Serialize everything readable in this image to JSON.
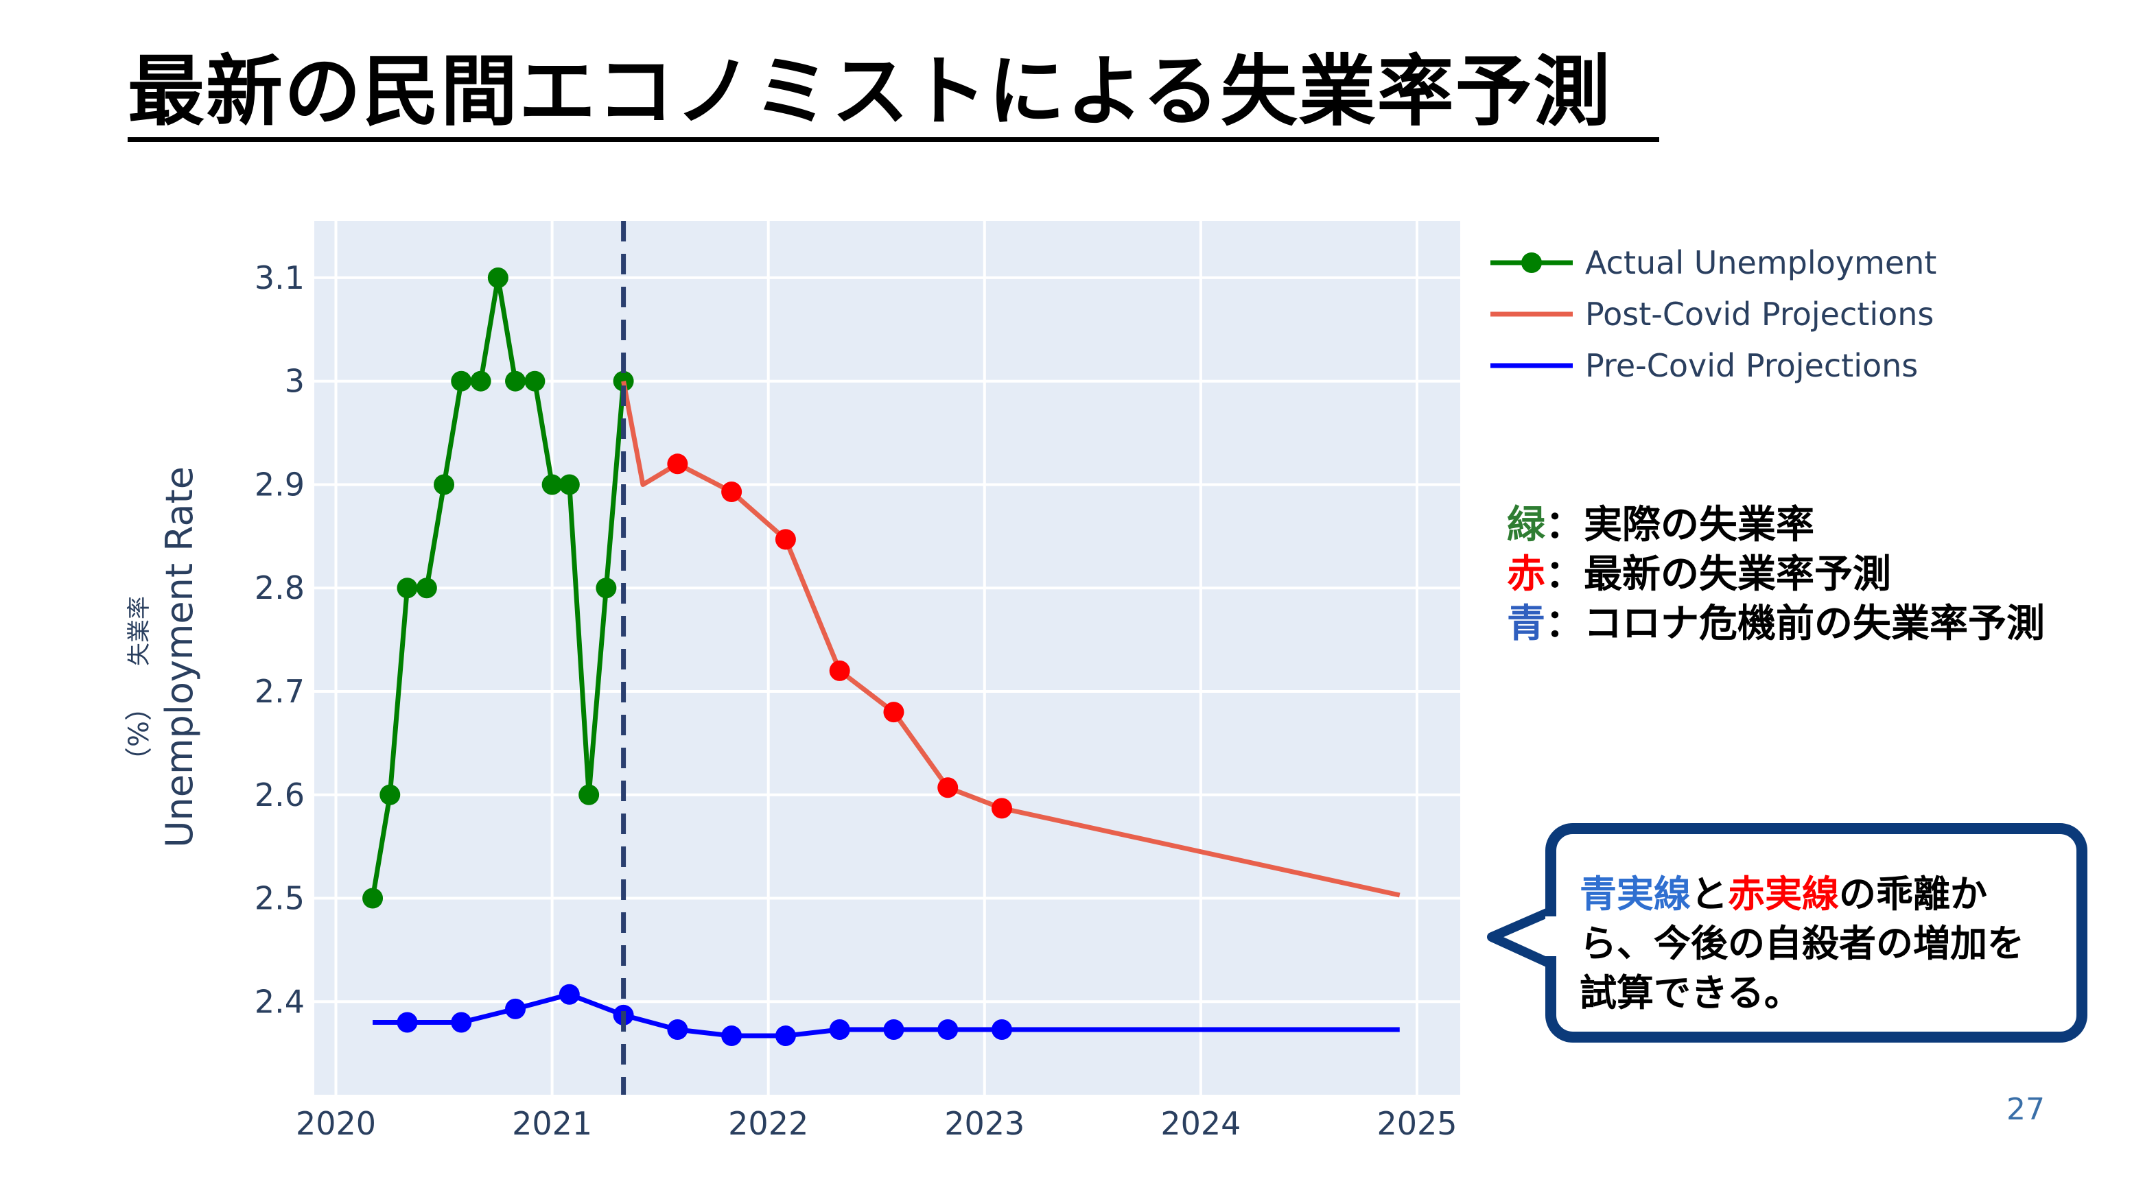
{
  "slide": {
    "title": "最新の民間エコノミストによる失業率予測",
    "page_number": "27"
  },
  "notes": [
    {
      "key": "緑",
      "text": "：実際の失業率",
      "color": "#2e7d32"
    },
    {
      "key": "赤",
      "text": "：最新の失業率予測",
      "color": "#ff0000"
    },
    {
      "key": "青",
      "text": "：コロナ危機前の失業率予測",
      "color": "#2f5fbf"
    }
  ],
  "callout": {
    "part1": "青実線",
    "part1_color": "#2f6fd0",
    "part2": "と",
    "part3": "赤実線",
    "part3_color": "#ff0000",
    "part4": "の乖離から、今後の自殺者の増加を試算できる。"
  },
  "chart_data": {
    "type": "line",
    "ylabel": "Unemployment Rate",
    "ylabel_jp": "失業率",
    "ylabel_unit": "（%）",
    "xlim": [
      2019.9,
      2025.2
    ],
    "ylim": [
      2.31,
      3.155
    ],
    "x_ticks": [
      2020,
      2021,
      2022,
      2023,
      2024,
      2025
    ],
    "y_ticks": [
      2.4,
      2.5,
      2.6,
      2.7,
      2.8,
      2.9,
      3,
      3.1
    ],
    "y_tick_labels": [
      "2.4",
      "2.5",
      "2.6",
      "2.7",
      "2.8",
      "2.9",
      "3",
      "3.1"
    ],
    "vline_x": 2021.33,
    "legend_position": "top-right",
    "colors": {
      "plot_bg": "#e5ecf6",
      "grid": "#ffffff"
    },
    "series": [
      {
        "name": "Actual Unemployment",
        "color": "#008000",
        "markers": true,
        "points": [
          [
            2020.17,
            2.5
          ],
          [
            2020.25,
            2.6
          ],
          [
            2020.33,
            2.8
          ],
          [
            2020.42,
            2.8
          ],
          [
            2020.5,
            2.9
          ],
          [
            2020.58,
            3.0
          ],
          [
            2020.67,
            3.0
          ],
          [
            2020.75,
            3.1
          ],
          [
            2020.83,
            3.0
          ],
          [
            2020.92,
            3.0
          ],
          [
            2021.0,
            2.9
          ],
          [
            2021.08,
            2.9
          ],
          [
            2021.17,
            2.6
          ],
          [
            2021.25,
            2.8
          ],
          [
            2021.33,
            3.0
          ]
        ]
      },
      {
        "name": "Post-Covid Projections",
        "color": "#e8604c",
        "markers": false,
        "points": [
          [
            2021.33,
            3.0
          ],
          [
            2021.42,
            2.9
          ],
          [
            2021.58,
            2.92
          ],
          [
            2021.83,
            2.893
          ],
          [
            2022.08,
            2.847
          ],
          [
            2022.33,
            2.72
          ],
          [
            2022.58,
            2.68
          ],
          [
            2022.83,
            2.607
          ],
          [
            2023.08,
            2.587
          ],
          [
            2024.92,
            2.503
          ]
        ]
      },
      {
        "name": "Post-Covid Projections (markers)",
        "color": "#ff0000",
        "markers": true,
        "legend": false,
        "points": [
          [
            2021.58,
            2.92
          ],
          [
            2021.83,
            2.893
          ],
          [
            2022.08,
            2.847
          ],
          [
            2022.33,
            2.72
          ],
          [
            2022.58,
            2.68
          ],
          [
            2022.83,
            2.607
          ],
          [
            2023.08,
            2.587
          ]
        ]
      },
      {
        "name": "Pre-Covid Projections",
        "color": "#0000ff",
        "markers": false,
        "points": [
          [
            2020.17,
            2.38
          ],
          [
            2020.33,
            2.38
          ],
          [
            2020.58,
            2.38
          ],
          [
            2020.83,
            2.393
          ],
          [
            2021.08,
            2.407
          ],
          [
            2021.33,
            2.387
          ],
          [
            2021.58,
            2.373
          ],
          [
            2021.83,
            2.367
          ],
          [
            2022.08,
            2.367
          ],
          [
            2022.33,
            2.373
          ],
          [
            2022.58,
            2.373
          ],
          [
            2022.83,
            2.373
          ],
          [
            2023.08,
            2.373
          ],
          [
            2024.92,
            2.373
          ]
        ]
      },
      {
        "name": "Pre-Covid Projections (markers)",
        "color": "#0000ff",
        "markers": true,
        "legend": false,
        "points": [
          [
            2020.33,
            2.38
          ],
          [
            2020.58,
            2.38
          ],
          [
            2020.83,
            2.393
          ],
          [
            2021.08,
            2.407
          ],
          [
            2021.33,
            2.387
          ],
          [
            2021.58,
            2.373
          ],
          [
            2021.83,
            2.367
          ],
          [
            2022.08,
            2.367
          ],
          [
            2022.33,
            2.373
          ],
          [
            2022.58,
            2.373
          ],
          [
            2022.83,
            2.373
          ],
          [
            2023.08,
            2.373
          ]
        ]
      }
    ],
    "legend": [
      {
        "label": "Actual Unemployment",
        "color": "#008000",
        "marker": true
      },
      {
        "label": "Post-Covid Projections",
        "color": "#e8604c",
        "marker": false
      },
      {
        "label": "Pre-Covid Projections",
        "color": "#0000ff",
        "marker": false
      }
    ]
  }
}
